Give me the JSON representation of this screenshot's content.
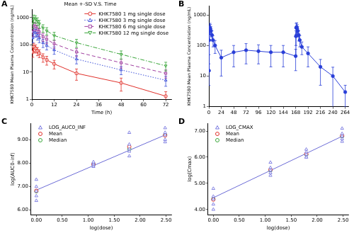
{
  "chart_data": [
    {
      "type": "line",
      "annotations": [
        {
          "text": "A"
        }
      ],
      "title": "Mean +-SD V.S. Time",
      "x_label": "Time (h)",
      "y_label": "KHK7580 Mean Plasma Concentration (ng/mL)",
      "log": "y",
      "grid": false,
      "legend": "top-right",
      "xlim": [
        0,
        75
      ],
      "xticks": [
        0,
        12,
        24,
        36,
        48,
        60,
        72
      ],
      "ylim": [
        1,
        2000
      ],
      "yticks": [
        1,
        10,
        100,
        1000
      ],
      "x": [
        0.5,
        1,
        2,
        3,
        4,
        6,
        8,
        12,
        24,
        48,
        72
      ],
      "series": [
        {
          "name": "KHK7580 1 mg single dose",
          "color": "#e0302a",
          "marker": "circle",
          "line_style": "solid",
          "values": [
            55,
            85,
            75,
            60,
            50,
            35,
            28,
            20,
            9,
            4,
            1.3
          ],
          "sd": [
            20,
            30,
            25,
            20,
            16,
            12,
            10,
            7,
            4,
            2,
            0.6
          ]
        },
        {
          "name": "KHK7580 3 mg single dose",
          "color": "#3b4fd8",
          "marker": "triangle",
          "line_style": "dotted",
          "values": [
            180,
            300,
            280,
            220,
            180,
            120,
            95,
            65,
            30,
            12,
            5
          ],
          "sd": [
            60,
            100,
            90,
            70,
            60,
            40,
            30,
            20,
            10,
            4,
            2
          ]
        },
        {
          "name": "KHK7580 6 mg single dose",
          "color": "#a040a0",
          "marker": "square",
          "line_style": "dashed",
          "values": [
            300,
            500,
            480,
            380,
            300,
            200,
            160,
            110,
            55,
            22,
            9
          ],
          "sd": [
            100,
            170,
            160,
            120,
            100,
            65,
            50,
            35,
            18,
            8,
            3
          ]
        },
        {
          "name": "KHK7580 12 mg single dose",
          "color": "#3aa63a",
          "marker": "triangle-down",
          "line_style": "dashdot",
          "values": [
            600,
            950,
            900,
            750,
            600,
            420,
            330,
            220,
            120,
            45,
            17
          ],
          "sd": [
            200,
            300,
            280,
            240,
            190,
            130,
            100,
            70,
            40,
            15,
            6
          ]
        }
      ]
    },
    {
      "type": "line",
      "annotations": [
        {
          "text": "B"
        }
      ],
      "y_label": "KHK7580 Mean Plasma Concentration (ng/mL)",
      "log": "y",
      "grid": false,
      "xlim": [
        0,
        270
      ],
      "xticks": [
        0,
        24,
        48,
        72,
        96,
        120,
        144,
        168,
        192,
        216,
        240,
        264
      ],
      "ylim": [
        1,
        2000
      ],
      "yticks": [
        1,
        10,
        100,
        1000
      ],
      "x": [
        0.25,
        0.5,
        1,
        2,
        3,
        4,
        6,
        8,
        12,
        24,
        48,
        72,
        96,
        120,
        144,
        168,
        168.5,
        169,
        170,
        171,
        172,
        174,
        176,
        180,
        192,
        216,
        240,
        264
      ],
      "series": [
        {
          "color": "#2a3fd8",
          "marker": "circle",
          "line_style": "solid",
          "values": [
            15,
            150,
            300,
            380,
            350,
            300,
            220,
            150,
            100,
            40,
            60,
            70,
            65,
            60,
            60,
            45,
            200,
            380,
            400,
            350,
            300,
            220,
            150,
            90,
            55,
            20,
            10,
            3
          ],
          "sd": [
            10,
            100,
            150,
            150,
            130,
            110,
            80,
            60,
            45,
            30,
            40,
            45,
            40,
            40,
            40,
            30,
            100,
            150,
            150,
            130,
            110,
            80,
            60,
            40,
            35,
            15,
            9.5,
            2
          ]
        }
      ]
    },
    {
      "type": "scatter",
      "annotations": [
        {
          "text": "C"
        }
      ],
      "x_label": "log(dose)",
      "y_label": "log(AUC0-inf)",
      "grid": false,
      "legend": "top-left",
      "xlim": [
        -0.1,
        2.6
      ],
      "xticks": [
        {
          "value": 0,
          "label": "0.00"
        },
        {
          "value": 0.5,
          "label": "0.50"
        },
        {
          "value": 1,
          "label": "1.00"
        },
        {
          "value": 1.5,
          "label": "1.50"
        },
        {
          "value": 2,
          "label": "2.00"
        },
        {
          "value": 2.5,
          "label": "2.50"
        }
      ],
      "ylim": [
        5.8,
        9.7
      ],
      "yticks": [
        {
          "value": 6,
          "label": "6.00"
        },
        {
          "value": 7,
          "label": "7.00"
        },
        {
          "value": 8,
          "label": "8.00"
        },
        {
          "value": 9,
          "label": "9.00"
        }
      ],
      "series": [
        {
          "name": "LOG_AUC0_INF",
          "color": "#7878e0",
          "marker": "triangle",
          "x": [
            0,
            0,
            0,
            0,
            0,
            1.1,
            1.1,
            1.1,
            1.1,
            1.1,
            1.79,
            1.79,
            1.79,
            1.79,
            1.79,
            2.48,
            2.48,
            2.48,
            2.48,
            2.48
          ],
          "values": [
            6.4,
            6.6,
            6.8,
            7.0,
            7.3,
            7.85,
            7.9,
            7.95,
            8.0,
            8.05,
            8.3,
            8.5,
            8.6,
            8.8,
            9.3,
            8.9,
            9.0,
            9.2,
            9.3,
            9.5
          ]
        },
        {
          "name": "Mean",
          "color": "#e0302a",
          "marker": "circle",
          "x": [
            0,
            1.1,
            1.79,
            2.48
          ],
          "values": [
            6.82,
            7.95,
            8.7,
            9.18
          ]
        },
        {
          "name": "Median",
          "color": "#3aa63a",
          "marker": "circle",
          "x": [
            0,
            1.1,
            1.79,
            2.48
          ],
          "values": [
            6.8,
            7.95,
            8.6,
            9.2
          ]
        }
      ],
      "fit_line": {
        "color": "#6b6bd6",
        "x": [
          0,
          2.48
        ],
        "values": [
          6.85,
          9.2
        ]
      }
    },
    {
      "type": "scatter",
      "annotations": [
        {
          "text": "D"
        }
      ],
      "x_label": "log(dose)",
      "y_label": "log(Cmax)",
      "grid": false,
      "legend": "top-left",
      "xlim": [
        -0.1,
        2.6
      ],
      "xticks": [
        {
          "value": 0,
          "label": "0.00"
        },
        {
          "value": 0.5,
          "label": "0.50"
        },
        {
          "value": 1,
          "label": "1.00"
        },
        {
          "value": 1.5,
          "label": "1.50"
        },
        {
          "value": 2,
          "label": "2.00"
        },
        {
          "value": 2.5,
          "label": "2.50"
        }
      ],
      "ylim": [
        3.8,
        7.3
      ],
      "yticks": [
        {
          "value": 4,
          "label": "4.00"
        },
        {
          "value": 5,
          "label": "5.00"
        },
        {
          "value": 6,
          "label": "6.00"
        },
        {
          "value": 7,
          "label": "7.00"
        }
      ],
      "series": [
        {
          "name": "LOG_CMAX",
          "color": "#7878e0",
          "marker": "triangle",
          "x": [
            0,
            0,
            0,
            0,
            0,
            1.1,
            1.1,
            1.1,
            1.1,
            1.1,
            1.79,
            1.79,
            1.79,
            1.79,
            1.79,
            2.48,
            2.48,
            2.48,
            2.48,
            2.48
          ],
          "values": [
            4.0,
            4.2,
            4.4,
            4.5,
            4.8,
            5.3,
            5.4,
            5.5,
            5.6,
            5.8,
            6.0,
            6.0,
            6.1,
            6.2,
            6.3,
            6.6,
            6.7,
            6.8,
            6.9,
            7.1
          ]
        },
        {
          "name": "Mean",
          "color": "#e0302a",
          "marker": "circle",
          "x": [
            0,
            1.1,
            1.79,
            2.48
          ],
          "values": [
            4.38,
            5.52,
            6.12,
            6.82
          ]
        },
        {
          "name": "Median",
          "color": "#3aa63a",
          "marker": "circle",
          "x": [
            0,
            1.1,
            1.79,
            2.48
          ],
          "values": [
            4.4,
            5.5,
            6.1,
            6.8
          ]
        }
      ],
      "fit_line": {
        "color": "#6b6bd6",
        "x": [
          0,
          2.48
        ],
        "values": [
          4.45,
          6.8
        ]
      }
    }
  ]
}
